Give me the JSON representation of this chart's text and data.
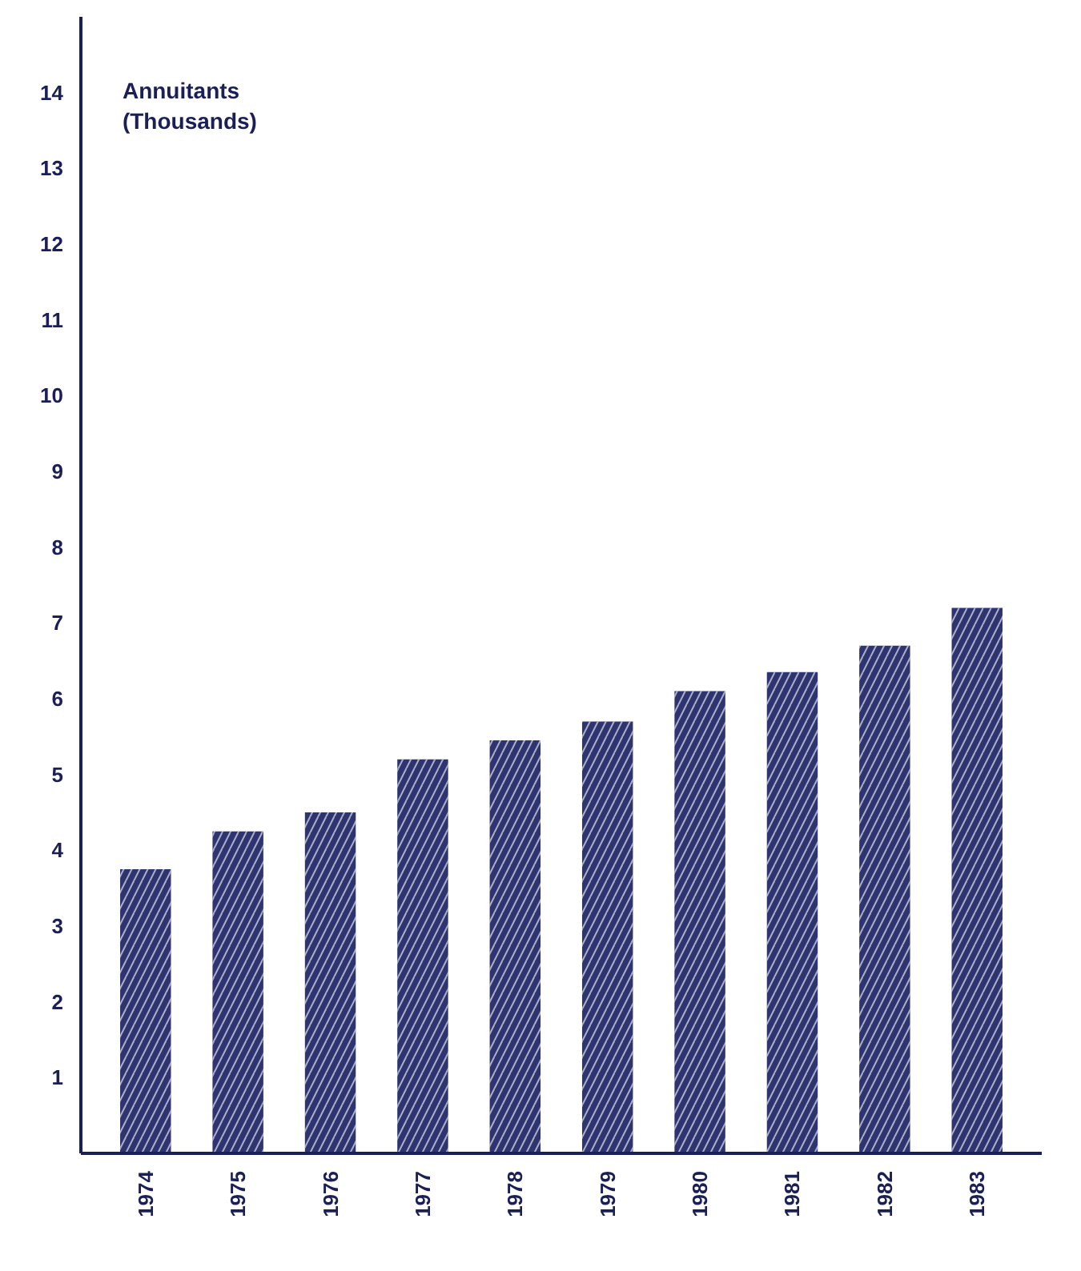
{
  "chart_data": {
    "type": "bar",
    "ylabel": "Annuitants\n(Thousands)",
    "categories": [
      "1974",
      "1975",
      "1976",
      "1977",
      "1978",
      "1979",
      "1980",
      "1981",
      "1982",
      "1983"
    ],
    "values": [
      3.75,
      4.25,
      4.5,
      5.2,
      5.45,
      5.7,
      6.1,
      6.35,
      6.7,
      7.2
    ],
    "color": "#2e3470",
    "ylim": [
      0,
      15
    ],
    "yticks": [
      1,
      2,
      3,
      4,
      5,
      6,
      7,
      8,
      9,
      10,
      11,
      12,
      13,
      14
    ],
    "grid": false
  }
}
